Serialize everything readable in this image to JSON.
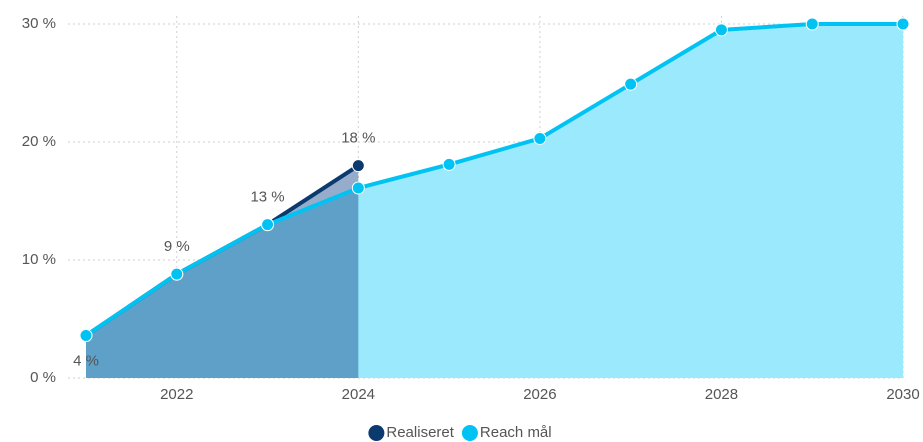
{
  "chart_data": {
    "type": "area",
    "x": [
      2021,
      2022,
      2023,
      2024,
      2025,
      2026,
      2027,
      2028,
      2029,
      2030
    ],
    "series": [
      {
        "name": "Realiseret",
        "color": "#0b3a6f",
        "values": [
          3.6,
          8.8,
          13.0,
          18.0,
          null,
          null,
          null,
          null,
          null,
          null
        ],
        "value_labels": [
          "4 %",
          "9 %",
          "13 %",
          "18 %",
          null,
          null,
          null,
          null,
          null,
          null
        ]
      },
      {
        "name": "Reach mål",
        "color": "#00c3f3",
        "values": [
          3.6,
          8.8,
          13.0,
          16.1,
          18.1,
          20.3,
          24.9,
          29.5,
          30.0,
          30.0
        ]
      }
    ],
    "xlim": [
      2021,
      2030
    ],
    "xticks": [
      2022,
      2024,
      2026,
      2028,
      2030
    ],
    "ylim": [
      0,
      30
    ],
    "yticks": [
      {
        "value": 0,
        "label": "0 %"
      },
      {
        "value": 10,
        "label": "10 %"
      },
      {
        "value": 20,
        "label": "20 %"
      },
      {
        "value": 30,
        "label": "30 %"
      }
    ],
    "grid": true,
    "legend": "bottom"
  }
}
